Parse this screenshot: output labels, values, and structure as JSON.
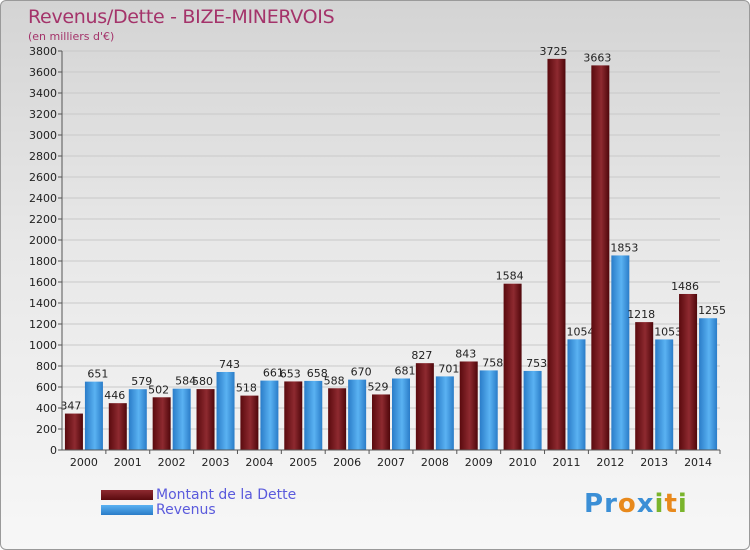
{
  "chart_data": {
    "type": "bar",
    "title": "Revenus/Dette - BIZE-MINERVOIS",
    "subtitle": "(en milliers d'€)",
    "categories": [
      "2000",
      "2001",
      "2002",
      "2003",
      "2004",
      "2005",
      "2006",
      "2007",
      "2008",
      "2009",
      "2010",
      "2011",
      "2012",
      "2013",
      "2014"
    ],
    "series": [
      {
        "name": "Montant de la Dette",
        "color": "#6e0f14",
        "values": [
          347,
          446,
          502,
          580,
          518,
          653,
          588,
          529,
          827,
          843,
          1584,
          3725,
          3663,
          1218,
          1486
        ]
      },
      {
        "name": "Revenus",
        "color": "#3a96e0",
        "values": [
          651,
          579,
          584,
          743,
          661,
          658,
          670,
          681,
          701,
          758,
          753,
          1054,
          1853,
          1053,
          1255
        ]
      }
    ],
    "y_ticks": [
      0,
      200,
      400,
      600,
      800,
      1000,
      1200,
      1400,
      1600,
      1800,
      2000,
      2200,
      2400,
      2600,
      2800,
      3000,
      3200,
      3400,
      3600,
      3800
    ],
    "ylim": [
      0,
      3800
    ],
    "grid": true,
    "legend": "bottom-left"
  },
  "logo": {
    "text": "Proxiti",
    "letters": [
      "P",
      "r",
      "o",
      "x",
      "i",
      "t",
      "i"
    ],
    "colors": [
      "#3b8fd6",
      "#3b8fd6",
      "#e8891c",
      "#3b8fd6",
      "#7ab42c",
      "#e8891c",
      "#7ab42c"
    ]
  }
}
